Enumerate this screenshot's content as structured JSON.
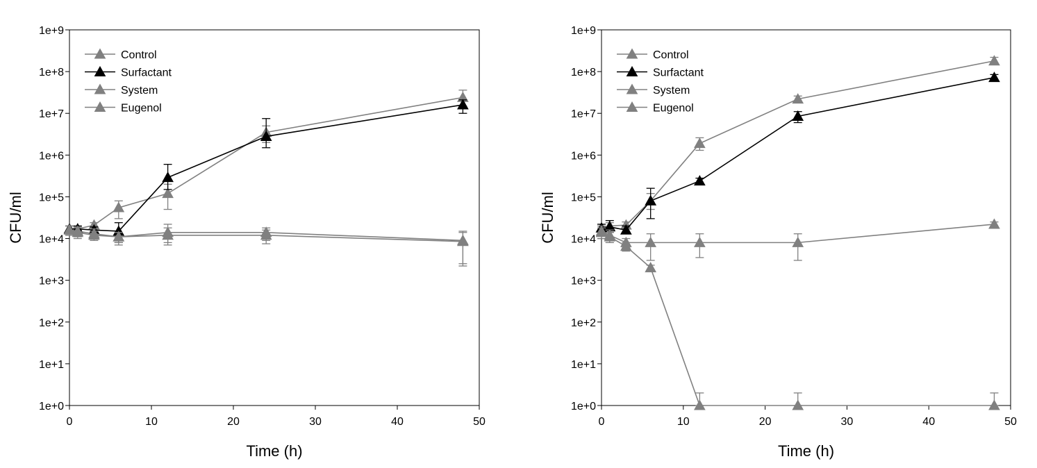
{
  "chart_data": [
    {
      "type": "line",
      "title": "",
      "xlabel": "Time (h)",
      "ylabel": "CFU/ml",
      "xlim": [
        0,
        50
      ],
      "ylim": [
        1,
        1000000000
      ],
      "yscale": "log",
      "grid": false,
      "legend_position": "top-left",
      "x_ticks": [
        "0",
        "10",
        "20",
        "30",
        "40",
        "50"
      ],
      "y_ticks": [
        "1e+0",
        "1e+1",
        "1e+2",
        "1e+3",
        "1e+4",
        "1e+5",
        "1e+6",
        "1e+7",
        "1e+8",
        "1e+9"
      ],
      "x": [
        0,
        1,
        3,
        6,
        12,
        24,
        48
      ],
      "series": [
        {
          "name": "Control",
          "color": "#808080",
          "values": [
            17000,
            17000,
            21000,
            55000,
            120000,
            3500000,
            24000000
          ],
          "error_upper": [
            20000,
            20000,
            24000,
            80000,
            200000,
            5000000,
            36000000
          ],
          "error_lower": [
            14000,
            14000,
            18000,
            30000,
            50000,
            2000000,
            15000000
          ]
        },
        {
          "name": "Surfactant",
          "color": "#000000",
          "values": [
            17000,
            17000,
            16000,
            15000,
            290000,
            2800000,
            16000000
          ],
          "error_upper": [
            20000,
            20000,
            19000,
            24000,
            600000,
            7500000,
            21000000
          ],
          "error_lower": [
            14000,
            14000,
            13000,
            8000,
            150000,
            1500000,
            10000000
          ]
        },
        {
          "name": "System",
          "color": "#808080",
          "values": [
            16000,
            15000,
            13000,
            11000,
            14000,
            14000,
            9000
          ],
          "error_upper": [
            20000,
            19000,
            17000,
            14000,
            22000,
            18000,
            15000
          ],
          "error_lower": [
            12000,
            11000,
            10000,
            7000,
            8000,
            9000,
            2500
          ]
        },
        {
          "name": "Eugenol",
          "color": "#808080",
          "values": [
            16000,
            14000,
            12000,
            11000,
            12000,
            12000,
            8500
          ],
          "error_upper": [
            20000,
            18000,
            15000,
            14000,
            18000,
            16000,
            14000
          ],
          "error_lower": [
            12000,
            10000,
            9000,
            8000,
            7000,
            7500,
            2200
          ]
        }
      ]
    },
    {
      "type": "line",
      "title": "",
      "xlabel": "Time (h)",
      "ylabel": "CFU/ml",
      "xlim": [
        0,
        50
      ],
      "ylim": [
        1,
        1000000000
      ],
      "yscale": "log",
      "grid": false,
      "legend_position": "top-left",
      "x_ticks": [
        "0",
        "10",
        "20",
        "30",
        "40",
        "50"
      ],
      "y_ticks": [
        "1e+0",
        "1e+1",
        "1e+2",
        "1e+3",
        "1e+4",
        "1e+5",
        "1e+6",
        "1e+7",
        "1e+8",
        "1e+9"
      ],
      "x": [
        0,
        1,
        3,
        6,
        12,
        24,
        48
      ],
      "series": [
        {
          "name": "Control",
          "color": "#808080",
          "values": [
            18000,
            20000,
            21000,
            80000,
            1900000,
            22000000,
            180000000
          ],
          "error_upper": [
            22000,
            24000,
            25000,
            120000,
            2600000,
            26000000,
            220000000
          ],
          "error_lower": [
            14000,
            16000,
            17000,
            50000,
            1300000,
            19000000,
            150000000
          ]
        },
        {
          "name": "Surfactant",
          "color": "#000000",
          "values": [
            18000,
            19000,
            16000,
            80000,
            240000,
            8500000,
            72000000
          ],
          "error_upper": [
            22000,
            27000,
            20000,
            160000,
            280000,
            11000000,
            85000000
          ],
          "error_lower": [
            14000,
            14000,
            13000,
            30000,
            200000,
            6000000,
            60000000
          ]
        },
        {
          "name": "System",
          "color": "#808080",
          "values": [
            15000,
            12000,
            8000,
            8000,
            8000,
            8000,
            22000
          ],
          "error_upper": [
            20000,
            16000,
            10000,
            13000,
            13000,
            13000,
            25000
          ],
          "error_lower": [
            10000,
            8000,
            6000,
            3000,
            3500,
            3000,
            19000
          ]
        },
        {
          "name": "Eugenol",
          "color": "#808080",
          "values": [
            14000,
            11000,
            6500,
            2000,
            1,
            1,
            1
          ],
          "error_upper": [
            18000,
            14000,
            8000,
            2300,
            2,
            2,
            2
          ],
          "error_lower": [
            10000,
            8000,
            5000,
            1800,
            1,
            1,
            1
          ]
        }
      ]
    }
  ]
}
